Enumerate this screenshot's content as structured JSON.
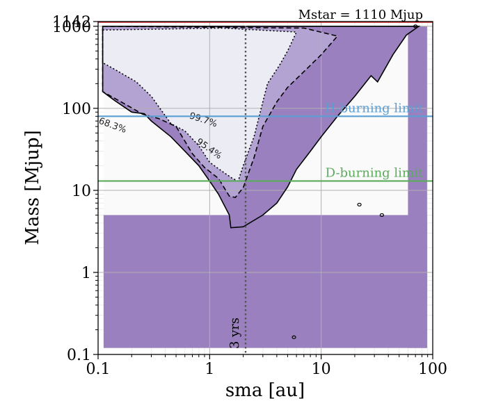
{
  "chart_data": {
    "type": "contour",
    "xscale": "log",
    "yscale": "log",
    "xlabel": "sma [au]",
    "ylabel": "Mass [Mjup]",
    "xlim": [
      0.1,
      100
    ],
    "ylim": [
      0.1,
      1142
    ],
    "x_ticks": [
      {
        "value": 0.1,
        "label": "0.1"
      },
      {
        "value": 1,
        "label": "1"
      },
      {
        "value": 10,
        "label": "10"
      },
      {
        "value": 100,
        "label": "100"
      }
    ],
    "y_ticks": [
      {
        "value": 0.1,
        "label": "0.1"
      },
      {
        "value": 1,
        "label": "1"
      },
      {
        "value": 10,
        "label": "10"
      },
      {
        "value": 100,
        "label": "100"
      },
      {
        "value": 1000,
        "label": "1000"
      },
      {
        "value": 1142,
        "label": "1142"
      }
    ],
    "fill_extent": {
      "x": [
        0.112,
        89
      ],
      "y": [
        0.12,
        1000
      ]
    },
    "contour_levels": [
      {
        "label": "68.3%",
        "style": "solid",
        "label_at": [
          0.1,
          66
        ],
        "polygon": [
          [
            0.11,
            160
          ],
          [
            0.14,
            125
          ],
          [
            0.2,
            90
          ],
          [
            0.26,
            86
          ],
          [
            0.3,
            70
          ],
          [
            0.45,
            45
          ],
          [
            0.6,
            30
          ],
          [
            0.8,
            20
          ],
          [
            1,
            13
          ],
          [
            1.2,
            9
          ],
          [
            1.5,
            5
          ],
          [
            1.55,
            3.5
          ],
          [
            2,
            3.6
          ],
          [
            3,
            5
          ],
          [
            4,
            7
          ],
          [
            5,
            11
          ],
          [
            6,
            18
          ],
          [
            8,
            30
          ],
          [
            10,
            45
          ],
          [
            14,
            80
          ],
          [
            20,
            140
          ],
          [
            28,
            250
          ],
          [
            32,
            210
          ],
          [
            44,
            450
          ],
          [
            58,
            780
          ],
          [
            75,
            1000
          ],
          [
            0.11,
            1000
          ]
        ]
      },
      {
        "label": "95.4%",
        "style": "dashed",
        "label_at": [
          0.75,
          38
        ],
        "polygon": [
          [
            0.11,
            1000
          ],
          [
            1.3,
            970
          ],
          [
            7,
            950
          ],
          [
            14,
            760
          ],
          [
            10,
            450
          ],
          [
            7,
            280
          ],
          [
            5,
            180
          ],
          [
            4,
            120
          ],
          [
            3,
            60
          ],
          [
            2.5,
            25
          ],
          [
            2,
            10.8
          ],
          [
            1.7,
            8.2
          ],
          [
            1.5,
            8.5
          ],
          [
            1.2,
            14
          ],
          [
            0.9,
            19
          ],
          [
            0.7,
            28
          ],
          [
            0.5,
            60
          ],
          [
            0.35,
            75
          ],
          [
            0.25,
            85
          ],
          [
            0.18,
            110
          ],
          [
            0.11,
            160
          ]
        ]
      },
      {
        "label": "99.7%",
        "style": "dotted",
        "label_at": [
          0.65,
          76
        ],
        "polygon": [
          [
            0.11,
            900
          ],
          [
            1.3,
            950
          ],
          [
            6,
            850
          ],
          [
            5,
            500
          ],
          [
            4.2,
            330
          ],
          [
            3.3,
            200
          ],
          [
            3,
            120
          ],
          [
            2.5,
            45
          ],
          [
            2,
            20
          ],
          [
            1.8,
            13
          ],
          [
            1.6,
            14
          ],
          [
            1.3,
            17
          ],
          [
            1,
            22
          ],
          [
            0.8,
            35
          ],
          [
            0.6,
            53
          ],
          [
            0.45,
            65
          ],
          [
            0.3,
            140
          ],
          [
            0.22,
            210
          ],
          [
            0.14,
            300
          ],
          [
            0.11,
            360
          ]
        ]
      }
    ],
    "blobs": [
      {
        "x": 22,
        "y": 6.7
      },
      {
        "x": 35,
        "y": 5.0
      },
      {
        "x": 5.7,
        "y": 0.162
      },
      {
        "x": 70,
        "y": 1000
      }
    ],
    "hlines": [
      {
        "label": "H-burning limit",
        "y": 80,
        "color": "#5a9fd4"
      },
      {
        "label": "D-burning limit",
        "y": 13,
        "color": "#5aab5a"
      }
    ],
    "vline": {
      "x": 2.1,
      "label": "3 yrs"
    },
    "annotation": {
      "text": "Mstar = 1110 Mjup",
      "color": "#d62728"
    }
  }
}
